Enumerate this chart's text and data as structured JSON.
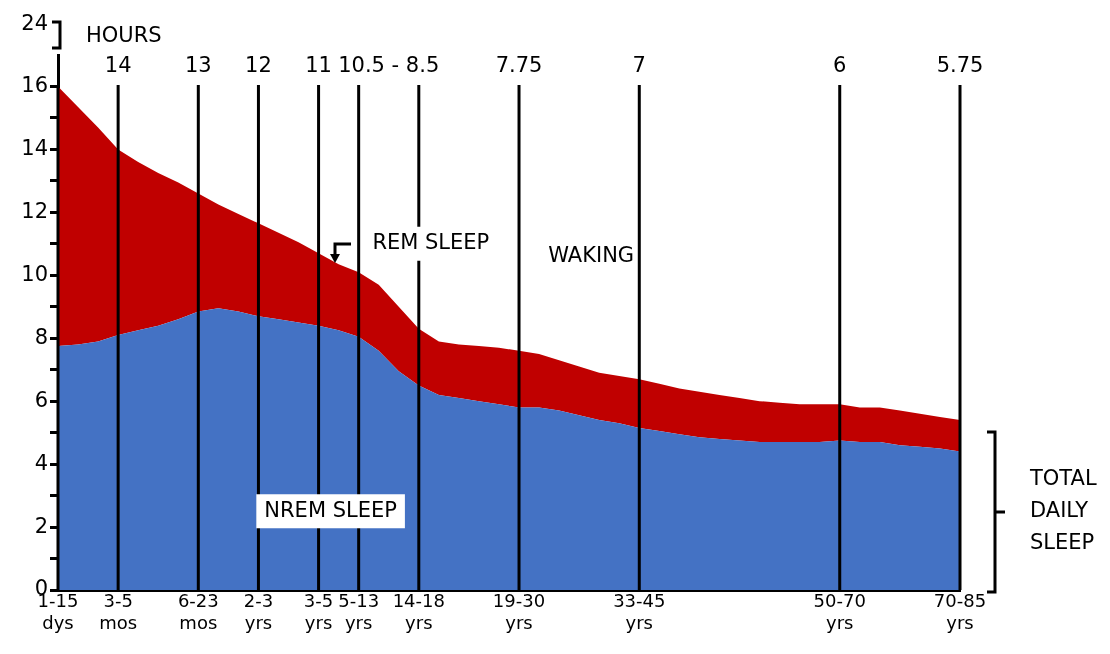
{
  "chart_data": {
    "type": "area",
    "stacked": true,
    "ylabel": "HOURS",
    "grid": "x",
    "categories": [
      "1-15 dys",
      null,
      null,
      "3-5 mos",
      null,
      null,
      null,
      "6-23 mos",
      null,
      null,
      "2-3 yrs",
      null,
      null,
      "3-5 yrs",
      null,
      "5-13 yrs",
      null,
      null,
      "14-18 yrs",
      null,
      null,
      null,
      null,
      "19-30 yrs",
      null,
      null,
      null,
      null,
      null,
      "33-45 yrs",
      null,
      null,
      null,
      null,
      null,
      null,
      null,
      null,
      null,
      "50-70 yrs",
      null,
      null,
      null,
      null,
      null,
      "70-85 yrs"
    ],
    "series": [
      {
        "color": "#4472c4",
        "values": [
          7.75,
          7.8,
          7.9,
          8.1,
          8.25,
          8.4,
          8.6,
          8.85,
          8.95,
          8.85,
          8.7,
          8.6,
          8.5,
          8.4,
          8.25,
          8.05,
          7.6,
          6.95,
          6.5,
          6.2,
          6.1,
          6.0,
          5.9,
          5.8,
          5.8,
          5.7,
          5.55,
          5.4,
          5.3,
          5.15,
          5.05,
          4.95,
          4.85,
          4.8,
          4.75,
          4.7,
          4.7,
          4.7,
          4.7,
          4.75,
          4.7,
          4.7,
          4.6,
          4.55,
          4.5,
          4.4
        ]
      },
      {
        "color": "#c00000",
        "values": [
          8.25,
          7.55,
          6.8,
          5.9,
          5.35,
          4.85,
          4.35,
          3.75,
          3.3,
          3.1,
          2.95,
          2.75,
          2.55,
          2.3,
          2.1,
          2.05,
          2.1,
          2.05,
          1.8,
          1.7,
          1.7,
          1.75,
          1.8,
          1.8,
          1.7,
          1.6,
          1.55,
          1.5,
          1.5,
          1.55,
          1.5,
          1.45,
          1.45,
          1.4,
          1.35,
          1.3,
          1.25,
          1.2,
          1.2,
          1.15,
          1.1,
          1.1,
          1.1,
          1.05,
          1.0,
          1.0
        ]
      }
    ],
    "ylim": [
      0,
      17
    ],
    "yticks": [
      0,
      {
        "value": 1,
        "label": null
      },
      2,
      {
        "value": 3,
        "label": null
      },
      4,
      {
        "value": 5,
        "label": null
      },
      6,
      {
        "value": 7,
        "label": null
      },
      8,
      {
        "value": 9,
        "label": null
      },
      10,
      {
        "value": 11,
        "label": null
      },
      12,
      {
        "value": 13,
        "label": null
      },
      14,
      {
        "value": 15,
        "label": null
      },
      16
    ],
    "annotations": [
      "24",
      "14",
      "13",
      "12",
      "11",
      "10.5 - 8.5",
      "7.75",
      "7",
      "6",
      "5.75",
      "REM SLEEP",
      "WAKING",
      "NREM SLEEP",
      "TOTAL DAILY SLEEP"
    ]
  }
}
